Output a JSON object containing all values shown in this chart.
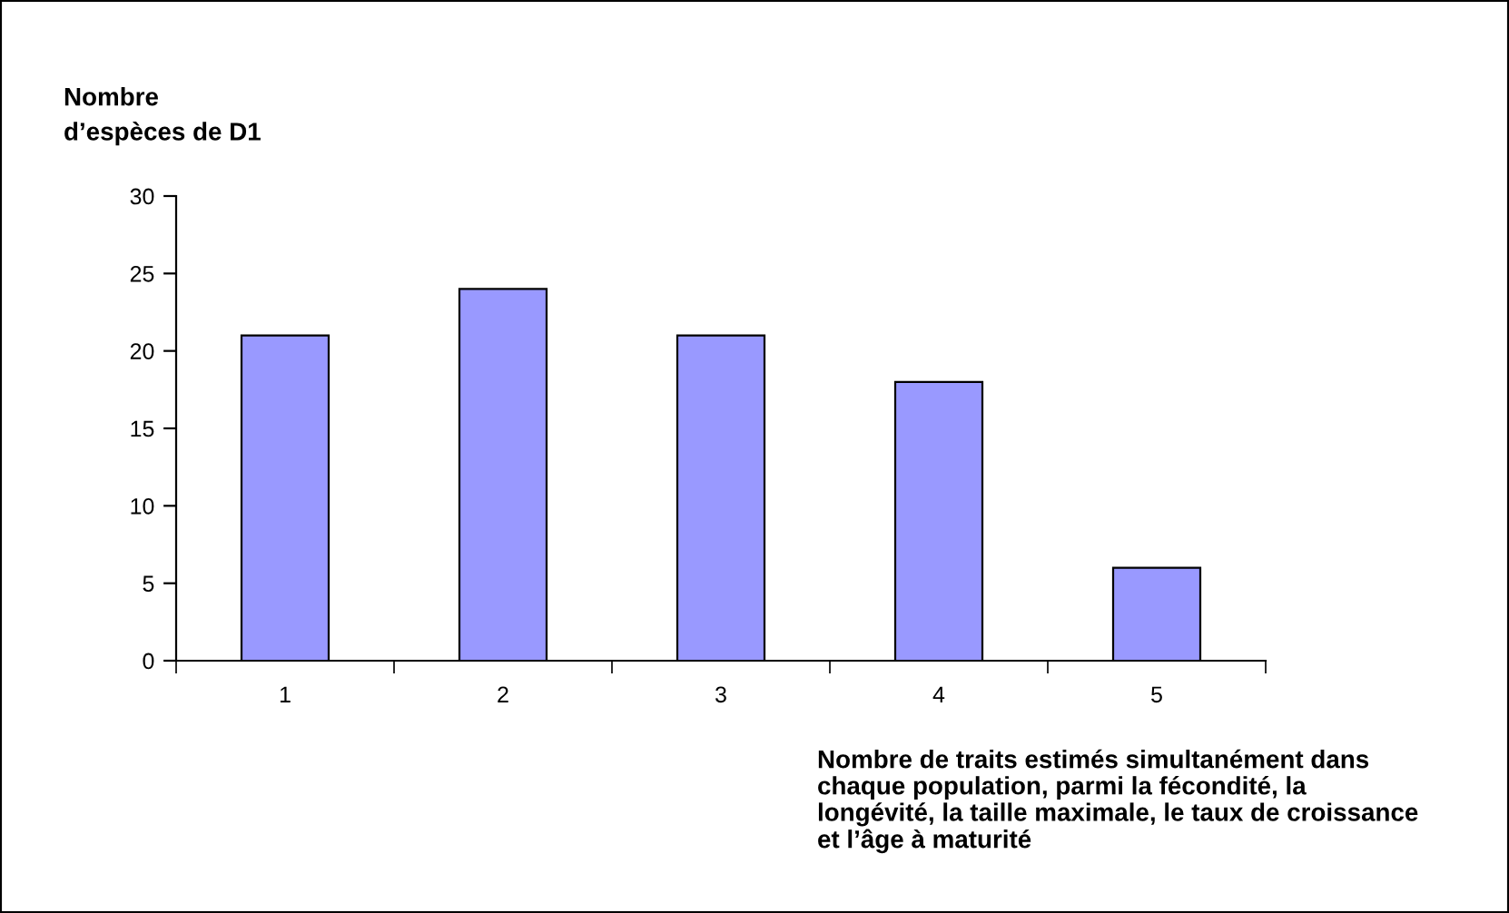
{
  "chart_data": {
    "type": "bar",
    "ylabel": "Nombre\nd’espèces de D1",
    "xlabel": "Nombre de traits estimés simultanément dans\nchaque population, parmi la fécondité, la\nlongévité, la taille maximale, le taux de croissance\net l’âge à maturité",
    "categories": [
      "1",
      "2",
      "3",
      "4",
      "5"
    ],
    "values": [
      21,
      24,
      21,
      18,
      6
    ],
    "color": "#9999ff",
    "ylim": [
      0,
      30
    ],
    "yticks": [
      0,
      5,
      10,
      15,
      20,
      25,
      30
    ],
    "grid": false,
    "legend": false
  }
}
